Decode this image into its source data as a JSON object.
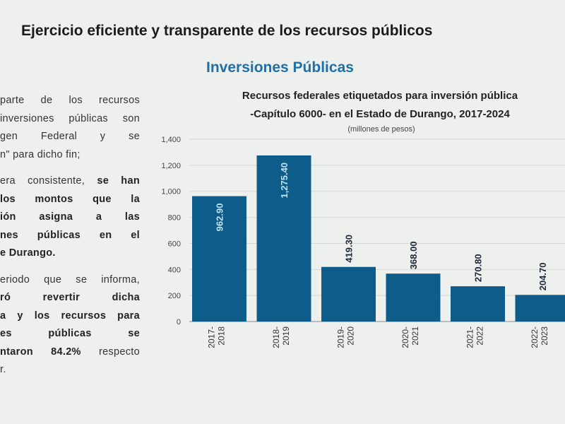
{
  "slide": {
    "title": "Ejercicio eficiente y transparente de los recursos públicos",
    "section_title": "Inversiones Públicas"
  },
  "body_text": [
    {
      "lines": [
        {
          "parts": [
            {
              "t": "parte de los recursos",
              "b": false
            }
          ]
        },
        {
          "parts": [
            {
              "t": "inversiones públicas son",
              "b": false
            }
          ]
        },
        {
          "parts": [
            {
              "t": "gen Federal y se",
              "b": false
            }
          ]
        },
        {
          "parts": [
            {
              "t": "n\" para dicho fin;",
              "b": false
            }
          ],
          "last": true
        }
      ]
    },
    {
      "lines": [
        {
          "parts": [
            {
              "t": "era consistente, ",
              "b": false
            },
            {
              "t": "se han",
              "b": true
            }
          ]
        },
        {
          "parts": [
            {
              "t": "los montos que la",
              "b": true
            }
          ]
        },
        {
          "parts": [
            {
              "t": "ión asigna a las",
              "b": true
            }
          ]
        },
        {
          "parts": [
            {
              "t": "nes públicas en el",
              "b": true
            }
          ]
        },
        {
          "parts": [
            {
              "t": "e Durango.",
              "b": true
            }
          ],
          "last": true
        }
      ]
    },
    {
      "lines": [
        {
          "parts": [
            {
              "t": "eriodo que se informa,",
              "b": false
            }
          ]
        },
        {
          "parts": [
            {
              "t": "ró revertir dicha",
              "b": true
            }
          ]
        },
        {
          "parts": [
            {
              "t": "a y los recursos para",
              "b": true
            }
          ]
        },
        {
          "parts": [
            {
              "t": "es públicas se",
              "b": true
            }
          ]
        },
        {
          "parts": [
            {
              "t": "ntaron ",
              "b": true
            },
            {
              "t": "84.2%",
              "b": true
            },
            {
              "t": " respecto",
              "b": false
            }
          ]
        },
        {
          "parts": [
            {
              "t": "r.",
              "b": false
            }
          ],
          "last": true
        }
      ]
    }
  ],
  "chart_data": {
    "type": "bar",
    "title": "Recursos federales etiquetados para inversión pública",
    "subtitle": "-Capítulo 6000- en el Estado de Durango, 2017-2024",
    "units": "(millones de pesos)",
    "xlabel": "",
    "ylabel": "",
    "ylim": [
      0,
      1400
    ],
    "yticks": [
      0,
      200,
      400,
      600,
      800,
      1000,
      1200,
      1400
    ],
    "ytick_labels": [
      "0",
      "200",
      "400",
      "600",
      "800",
      "1,000",
      "1,200",
      "1,400"
    ],
    "grid": true,
    "categories": [
      "2017-\n2018",
      "2018-\n2019",
      "2019-\n2020",
      "2020-\n2021",
      "2021-\n2022",
      "2022-\n2023"
    ],
    "values": [
      962.9,
      1275.4,
      419.3,
      368.0,
      270.8,
      204.7
    ],
    "value_labels": [
      "962.90",
      "1,275.40",
      "419.30",
      "368.00",
      "270.80",
      "204.70"
    ],
    "bar_color": "#0d5c8a",
    "label_color_inside": "#bfe3f5",
    "label_color_outside": "#1b2a3a"
  }
}
